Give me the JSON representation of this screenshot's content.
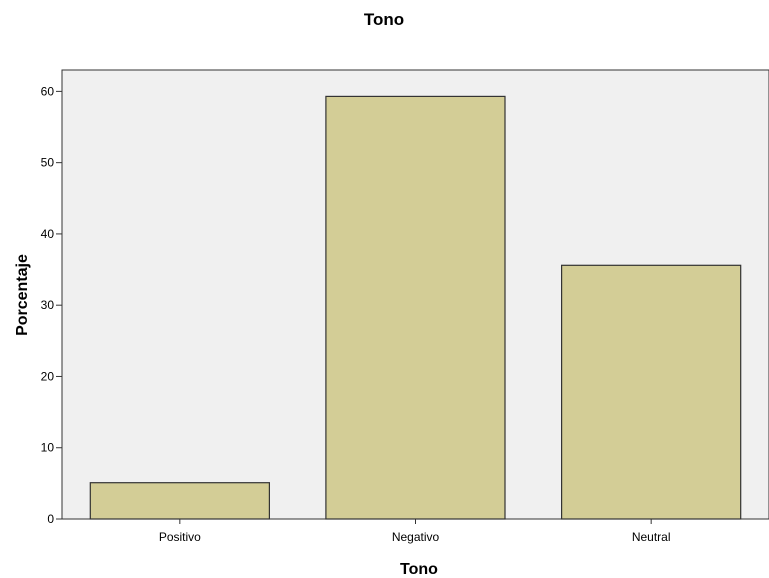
{
  "chart_data": {
    "type": "bar",
    "title": "Tono",
    "xlabel": "Tono",
    "ylabel": "Porcentaje",
    "categories": [
      "Positivo",
      "Negativo",
      "Neutral"
    ],
    "values": [
      5.1,
      59.3,
      35.6
    ],
    "ylim": [
      0,
      63
    ],
    "yticks": [
      0,
      10,
      20,
      30,
      40,
      50,
      60
    ],
    "grid": false,
    "colors": {
      "plot_background": "#f0f0f0",
      "bar_fill": "#d3cd96",
      "bar_stroke": "#333333"
    }
  }
}
